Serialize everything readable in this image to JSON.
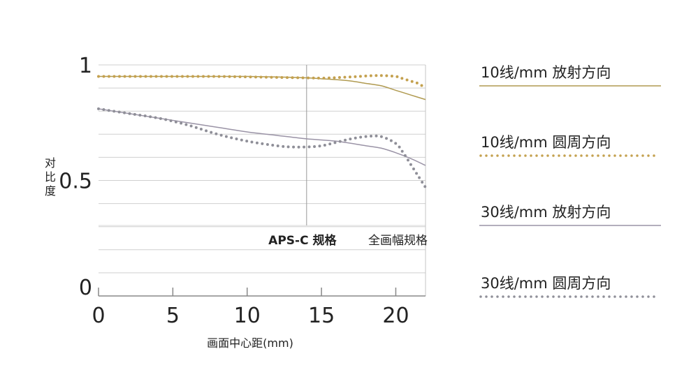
{
  "chart_data": {
    "type": "line",
    "title": "",
    "xlabel": "画面中心距(mm)",
    "ylabel_chars": [
      "对",
      "比",
      "度"
    ],
    "xlim": [
      0,
      22
    ],
    "ylim": [
      0,
      1
    ],
    "xticks": [
      "0",
      "5",
      "10",
      "15",
      "20"
    ],
    "xtick_values": [
      0,
      5,
      10,
      15,
      20
    ],
    "yticks": [
      "0",
      "0.5",
      "1"
    ],
    "ytick_values": [
      0,
      0.5,
      1
    ],
    "grid": true,
    "annotations": [
      {
        "text": "APS-C 规格",
        "x": 14
      },
      {
        "text": "全画幅规格",
        "x": 22
      }
    ],
    "vline_x": 14,
    "series": [
      {
        "name": "10线/mm 放射方向",
        "style": "solid",
        "color": "#b09a50",
        "x": [
          0,
          2,
          4,
          6,
          8,
          10,
          12,
          14,
          15,
          16,
          17,
          18,
          19,
          20,
          21,
          22
        ],
        "y": [
          0.95,
          0.95,
          0.95,
          0.95,
          0.95,
          0.95,
          0.948,
          0.944,
          0.94,
          0.936,
          0.93,
          0.92,
          0.91,
          0.89,
          0.87,
          0.85
        ]
      },
      {
        "name": "10线/mm 圆周方向",
        "style": "dotted",
        "color": "#c4a14f",
        "x": [
          0,
          2,
          4,
          6,
          8,
          10,
          12,
          14,
          15,
          16,
          17,
          18,
          19,
          20,
          20.5,
          21,
          21.5,
          22
        ],
        "y": [
          0.95,
          0.95,
          0.95,
          0.95,
          0.95,
          0.948,
          0.946,
          0.944,
          0.943,
          0.945,
          0.948,
          0.952,
          0.954,
          0.95,
          0.94,
          0.93,
          0.92,
          0.9
        ]
      },
      {
        "name": "30线/mm 放射方向",
        "style": "solid",
        "color": "#9a93a6",
        "x": [
          0,
          2,
          4,
          6,
          8,
          10,
          12,
          14,
          16,
          18,
          19,
          20,
          21,
          22
        ],
        "y": [
          0.81,
          0.79,
          0.77,
          0.75,
          0.73,
          0.71,
          0.695,
          0.68,
          0.67,
          0.65,
          0.64,
          0.62,
          0.595,
          0.565
        ]
      },
      {
        "name": "30线/mm 圆周方向",
        "style": "dotted",
        "color": "#8f8f98",
        "x": [
          0,
          2,
          4,
          6,
          8,
          10,
          12,
          13,
          14,
          15,
          16,
          17,
          18,
          19,
          20,
          20.5,
          21,
          21.5,
          22
        ],
        "y": [
          0.81,
          0.79,
          0.77,
          0.74,
          0.7,
          0.67,
          0.65,
          0.645,
          0.645,
          0.65,
          0.665,
          0.68,
          0.69,
          0.69,
          0.66,
          0.62,
          0.57,
          0.52,
          0.47
        ]
      }
    ]
  }
}
